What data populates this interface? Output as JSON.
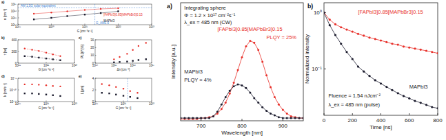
{
  "chart_data": [
    {
      "type": "scatter",
      "title": "a)",
      "xlabel": "G [cm⁻³s⁻¹]",
      "ylabel": "n [cm⁻³]",
      "log": true,
      "grid": false,
      "xlim": [
        1e+19,
        1e+23
      ],
      "xticks": [
        {
          "value": 1e+19,
          "label": "10¹⁹"
        },
        {
          "value": 1e+20,
          "label": "10²⁰"
        },
        {
          "value": 1e+21,
          "label": "10²¹"
        },
        {
          "value": 1e+22,
          "label": "10²²"
        },
        {
          "value": 1e+23,
          "label": "10²³"
        }
      ],
      "ylim": [
        100000000000000.0,
        1e+17
      ],
      "yticks": [
        {
          "value": 100000000000000.0,
          "label": "10¹⁴"
        },
        {
          "value": 1000000000000000.0,
          "label": "10¹⁵"
        },
        {
          "value": 1e+16,
          "label": "10¹⁶"
        },
        {
          "value": 1e+17,
          "label": "10¹⁷"
        }
      ],
      "x": [
        3e+19,
        1e+20,
        3e+20,
        1e+21,
        3e+21,
        1e+22
      ],
      "hline": {
        "value": 3e+16,
        "label": "AM 1.5G solar equivalent"
      },
      "vline": {
        "value": 2e+21,
        "label": "G_AM1.5"
      },
      "series": [
        {
          "name": "[FAPbI3]0.85[MAPbBr3]0.15",
          "color": "#e8302a",
          "marker": "circle",
          "line_style": "solid",
          "values": [
            4000000000000000.0,
            6000000000000000.0,
            9000000000000000.0,
            1.4e+16,
            2e+16,
            2.5e+16
          ]
        },
        {
          "name": "MAPbI3",
          "color": "#1c1c2e",
          "marker": "square",
          "line_style": "solid",
          "values": [
            600000000000000.0,
            1000000000000000.0,
            1800000000000000.0,
            3000000000000000.0,
            5000000000000000.0,
            9000000000000000.0
          ]
        }
      ]
    },
    {
      "type": "scatter",
      "title": "b)",
      "xlabel": "G [cm⁻³s⁻¹]",
      "ylabel": "τ [ns]",
      "log": "x",
      "grid": false,
      "xlim": [
        1e+19,
        1e+23
      ],
      "xticks": [
        {
          "value": 1e+19,
          "label": "10¹⁹"
        },
        {
          "value": 1e+21,
          "label": "10²¹"
        },
        {
          "value": 1e+23,
          "label": "10²³"
        }
      ],
      "ylim": [
        0,
        400
      ],
      "yticks": [
        0,
        200,
        400
      ],
      "x": [
        3e+19,
        1e+20,
        3e+20,
        1e+21,
        3e+21,
        1e+22
      ],
      "series": [
        {
          "color": "#e8302a",
          "marker": "circle",
          "line_style": "dashed",
          "values": [
            250,
            230,
            210,
            180,
            150,
            120
          ]
        },
        {
          "color": "#1c1c2e",
          "marker": "square",
          "line_style": "dashed",
          "values": [
            120,
            110,
            95,
            80,
            65,
            50
          ]
        }
      ]
    },
    {
      "type": "scatter",
      "title": "c)",
      "xlabel": "Δn [cm⁻³]",
      "ylabel": "PLQY [%]",
      "log": "x",
      "grid": false,
      "xlim": [
        100000000000000.0,
        1e+17
      ],
      "xticks": [
        {
          "value": 100000000000000.0,
          "label": "10¹⁴"
        },
        {
          "value": 1000000000000000.0,
          "label": "10¹⁵"
        },
        {
          "value": 1e+16,
          "label": "10¹⁶"
        },
        {
          "value": 1e+17,
          "label": "10¹⁷"
        }
      ],
      "ylim": [
        0,
        30
      ],
      "yticks": [
        0,
        10,
        20,
        30
      ],
      "x": [
        1000000000000000.0,
        2000000000000000.0,
        5000000000000000.0,
        1e+16,
        2e+16,
        5e+16
      ],
      "series": [
        {
          "color": "#e8302a",
          "marker": "circle",
          "values": [
            5,
            8,
            12,
            17,
            22,
            26
          ]
        },
        {
          "color": "#1c1c2e",
          "marker": "square",
          "values": [
            1,
            1.5,
            2,
            3,
            4,
            5
          ]
        }
      ]
    },
    {
      "type": "scatter",
      "title": "d)",
      "xlabel": "G [cm⁻³s⁻¹]",
      "ylabel": "k [cm³s⁻¹]",
      "log": true,
      "grid": false,
      "xlim": [
        1e+19,
        1e+23
      ],
      "xticks": [
        {
          "value": 1e+19,
          "label": "10¹⁹"
        },
        {
          "value": 1e+21,
          "label": "10²¹"
        },
        {
          "value": 1e+23,
          "label": "10²³"
        }
      ],
      "ylim": [
        1e-11,
        1e-09
      ],
      "yticks": [
        {
          "value": 1e-11,
          "label": "10⁻¹¹"
        },
        {
          "value": 1e-10,
          "label": "10⁻¹⁰"
        },
        {
          "value": 1e-09,
          "label": "10⁻⁹"
        }
      ],
      "x": [
        3e+19,
        1e+20,
        3e+20,
        1e+21,
        3e+21,
        1e+22
      ],
      "series": [
        {
          "color": "#e8302a",
          "marker": "circle",
          "values": [
            3e-10,
            3e-10,
            2.8e-10,
            2.5e-10,
            2.2e-10,
            2e-10
          ]
        },
        {
          "color": "#1c1c2e",
          "marker": "square",
          "values": [
            5e-11,
            5e-11,
            4.5e-11,
            4e-11,
            3.5e-11,
            3e-11
          ]
        }
      ]
    },
    {
      "type": "scatter",
      "title": "e)",
      "xlabel": "G [cm⁻³s⁻¹]",
      "ylabel": "L [µm]",
      "log": "x",
      "grid": false,
      "xlim": [
        1e+19,
        1e+23
      ],
      "xticks": [
        {
          "value": 1e+19,
          "label": "10¹⁹"
        },
        {
          "value": 1e+21,
          "label": "10²¹"
        },
        {
          "value": 1e+23,
          "label": "10²³"
        }
      ],
      "ylim": [
        0,
        4
      ],
      "yticks": [
        0,
        2,
        4
      ],
      "x": [
        3e+19,
        1e+20,
        3e+20,
        1e+21,
        3e+21,
        1e+22
      ],
      "vline": {
        "value": 2e+21
      },
      "series": [
        {
          "color": "#e8302a",
          "marker": "circle",
          "values": [
            3,
            2.8,
            2.5,
            2.2,
            1.8,
            1.5
          ]
        },
        {
          "color": "#1c1c2e",
          "marker": "square",
          "values": [
            1.5,
            1.4,
            1.2,
            1,
            0.8,
            0.6
          ]
        }
      ]
    },
    {
      "type": "line",
      "title": "a)",
      "xlabel": "Wavelength [nm]",
      "ylabel": "Intensity [a.u.]",
      "grid": false,
      "tick_labels": "x",
      "xlim": [
        650,
        950
      ],
      "xticks": [
        700,
        800,
        900
      ],
      "ylim": [
        0,
        1.3
      ],
      "annotations": [
        "Integrating sphere",
        "Φ = 1.2 × 10¹⁷ cm⁻²s⁻¹",
        "λ_ex = 485 nm (CW)",
        "PLQY = 25%",
        "PLQY = 4%"
      ],
      "x": [
        650,
        660,
        670,
        680,
        690,
        700,
        710,
        720,
        730,
        740,
        750,
        760,
        770,
        780,
        790,
        800,
        810,
        820,
        830,
        840,
        850,
        860,
        870,
        880,
        890,
        900,
        910,
        920,
        930,
        940,
        950
      ],
      "series": [
        {
          "name": "[FAPbI3]0.85[MAPbBr3]0.15",
          "color": "#e8302a",
          "marker": "circle",
          "line_style": "solid",
          "values": [
            0.02,
            0.02,
            0.02,
            0.02,
            0.02,
            0.03,
            0.03,
            0.04,
            0.05,
            0.08,
            0.13,
            0.2,
            0.3,
            0.42,
            0.56,
            0.7,
            0.82,
            0.88,
            0.86,
            0.78,
            0.65,
            0.5,
            0.37,
            0.26,
            0.18,
            0.12,
            0.08,
            0.05,
            0.04,
            0.03,
            0.03
          ]
        },
        {
          "name": "MAPbI3",
          "color": "#1c1c2e",
          "marker": "circle",
          "line_style": "solid",
          "values": [
            0.03,
            0.03,
            0.03,
            0.03,
            0.03,
            0.03,
            0.03,
            0.03,
            0.05,
            0.1,
            0.18,
            0.26,
            0.33,
            0.38,
            0.4,
            0.39,
            0.36,
            0.31,
            0.25,
            0.2,
            0.15,
            0.11,
            0.08,
            0.06,
            0.04,
            0.03,
            0.03,
            0.03,
            0.03,
            0.03,
            0.03
          ]
        }
      ]
    },
    {
      "type": "line",
      "title": "b)",
      "xlabel": "Time [ns]",
      "ylabel": "Normalized intensity",
      "log": "y",
      "grid": false,
      "xlim": [
        0,
        800
      ],
      "xticks": [
        0,
        200,
        400,
        600,
        800
      ],
      "ylim": [
        0.015,
        1.5
      ],
      "yticks": [
        {
          "value": 0.1,
          "label": "10⁻¹"
        },
        {
          "value": 1,
          "label": "10⁰"
        }
      ],
      "annotations": [
        "Fluence = 1.54 nJcm⁻²",
        "λ_ex = 485 nm (pulse)"
      ],
      "x": [
        0,
        40,
        80,
        120,
        160,
        200,
        240,
        280,
        320,
        360,
        400,
        440,
        480,
        520,
        560,
        600,
        640,
        680,
        720,
        760,
        800
      ],
      "series": [
        {
          "name": "[FAPbI3]0.85[MAPbBr3]0.15",
          "color": "#e8302a",
          "marker": "circle",
          "line_style": "solid",
          "values": [
            1.0,
            0.75,
            0.62,
            0.55,
            0.5,
            0.46,
            0.42,
            0.39,
            0.36,
            0.34,
            0.32,
            0.3,
            0.28,
            0.27,
            0.25,
            0.24,
            0.23,
            0.22,
            0.21,
            0.2,
            0.19
          ]
        },
        {
          "name": "MAPbI3",
          "color": "#1c1c2e",
          "marker": "circle",
          "line_style": "solid",
          "values": [
            1.0,
            0.6,
            0.4,
            0.28,
            0.2,
            0.15,
            0.11,
            0.09,
            0.075,
            0.063,
            0.055,
            0.048,
            0.042,
            0.037,
            0.033,
            0.03,
            0.027,
            0.025,
            0.023,
            0.021,
            0.02
          ]
        }
      ]
    }
  ]
}
